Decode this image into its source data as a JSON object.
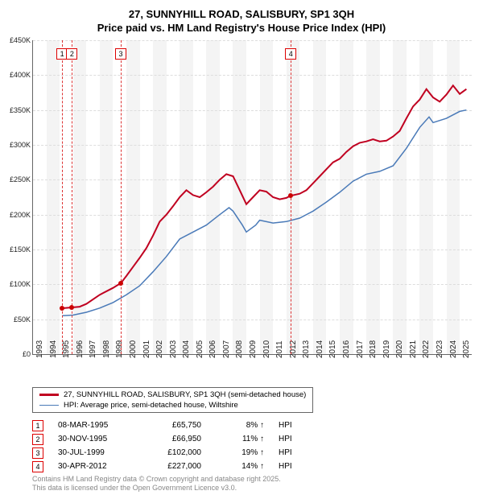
{
  "title_line1": "27, SUNNYHILL ROAD, SALISBURY, SP1 3QH",
  "title_line2": "Price paid vs. HM Land Registry's House Price Index (HPI)",
  "chart": {
    "type": "line",
    "xlim": [
      1993,
      2025.9
    ],
    "ylim": [
      0,
      450000
    ],
    "ytick_step": 50000,
    "ylabels": [
      "£0",
      "£50K",
      "£100K",
      "£150K",
      "£200K",
      "£250K",
      "£300K",
      "£350K",
      "£400K",
      "£450K"
    ],
    "xticks": [
      1993,
      1994,
      1995,
      1996,
      1997,
      1998,
      1999,
      2000,
      2001,
      2002,
      2003,
      2004,
      2005,
      2006,
      2007,
      2008,
      2009,
      2010,
      2011,
      2012,
      2013,
      2014,
      2015,
      2016,
      2017,
      2018,
      2019,
      2020,
      2021,
      2022,
      2023,
      2024,
      2025
    ],
    "band_color": "#f4f4f4",
    "grid_color": "#ddd",
    "series": [
      {
        "name": "27, SUNNYHILL ROAD, SALISBURY, SP1 3QH (semi-detached house)",
        "color": "#c00020",
        "width": 2,
        "points": [
          [
            1995.2,
            65750
          ],
          [
            1995.9,
            66950
          ],
          [
            1996.5,
            68000
          ],
          [
            1997,
            72000
          ],
          [
            1998,
            85000
          ],
          [
            1999,
            95000
          ],
          [
            1999.6,
            102000
          ],
          [
            2000,
            112000
          ],
          [
            2000.5,
            125000
          ],
          [
            2001,
            138000
          ],
          [
            2001.5,
            152000
          ],
          [
            2002,
            170000
          ],
          [
            2002.5,
            190000
          ],
          [
            2003,
            200000
          ],
          [
            2003.5,
            212000
          ],
          [
            2004,
            225000
          ],
          [
            2004.5,
            235000
          ],
          [
            2005,
            228000
          ],
          [
            2005.5,
            225000
          ],
          [
            2006,
            232000
          ],
          [
            2006.5,
            240000
          ],
          [
            2007,
            250000
          ],
          [
            2007.5,
            258000
          ],
          [
            2008,
            255000
          ],
          [
            2008.5,
            235000
          ],
          [
            2009,
            215000
          ],
          [
            2009.5,
            225000
          ],
          [
            2010,
            235000
          ],
          [
            2010.5,
            233000
          ],
          [
            2011,
            225000
          ],
          [
            2011.5,
            222000
          ],
          [
            2012,
            224000
          ],
          [
            2012.3,
            227000
          ],
          [
            2013,
            230000
          ],
          [
            2013.5,
            235000
          ],
          [
            2014,
            245000
          ],
          [
            2014.5,
            255000
          ],
          [
            2015,
            265000
          ],
          [
            2015.5,
            275000
          ],
          [
            2016,
            280000
          ],
          [
            2016.5,
            290000
          ],
          [
            2017,
            298000
          ],
          [
            2017.5,
            303000
          ],
          [
            2018,
            305000
          ],
          [
            2018.5,
            308000
          ],
          [
            2019,
            305000
          ],
          [
            2019.5,
            306000
          ],
          [
            2020,
            312000
          ],
          [
            2020.5,
            320000
          ],
          [
            2021,
            338000
          ],
          [
            2021.5,
            355000
          ],
          [
            2022,
            365000
          ],
          [
            2022.5,
            380000
          ],
          [
            2023,
            368000
          ],
          [
            2023.5,
            362000
          ],
          [
            2024,
            372000
          ],
          [
            2024.5,
            385000
          ],
          [
            2025,
            373000
          ],
          [
            2025.5,
            380000
          ]
        ]
      },
      {
        "name": "HPI: Average price, semi-detached house, Wiltshire",
        "color": "#4a7ab8",
        "width": 1.5,
        "points": [
          [
            1995.2,
            55000
          ],
          [
            1996,
            56000
          ],
          [
            1997,
            60000
          ],
          [
            1998,
            66000
          ],
          [
            1999,
            74000
          ],
          [
            2000,
            85000
          ],
          [
            2001,
            98000
          ],
          [
            2002,
            118000
          ],
          [
            2003,
            140000
          ],
          [
            2004,
            165000
          ],
          [
            2005,
            175000
          ],
          [
            2006,
            185000
          ],
          [
            2007,
            200000
          ],
          [
            2007.7,
            210000
          ],
          [
            2008,
            205000
          ],
          [
            2008.7,
            185000
          ],
          [
            2009,
            175000
          ],
          [
            2009.7,
            185000
          ],
          [
            2010,
            192000
          ],
          [
            2011,
            188000
          ],
          [
            2012,
            190000
          ],
          [
            2013,
            195000
          ],
          [
            2014,
            205000
          ],
          [
            2015,
            218000
          ],
          [
            2016,
            232000
          ],
          [
            2017,
            248000
          ],
          [
            2018,
            258000
          ],
          [
            2019,
            262000
          ],
          [
            2020,
            270000
          ],
          [
            2021,
            295000
          ],
          [
            2022,
            325000
          ],
          [
            2022.7,
            340000
          ],
          [
            2023,
            332000
          ],
          [
            2024,
            338000
          ],
          [
            2025,
            348000
          ],
          [
            2025.5,
            350000
          ]
        ]
      }
    ],
    "sale_points": [
      {
        "x": 1995.18,
        "y": 65750
      },
      {
        "x": 1995.92,
        "y": 66950
      },
      {
        "x": 1999.58,
        "y": 102000
      },
      {
        "x": 2012.33,
        "y": 227000
      }
    ],
    "markers": [
      {
        "n": "1",
        "x": 1995.18
      },
      {
        "n": "2",
        "x": 1995.92
      },
      {
        "n": "3",
        "x": 1999.58
      },
      {
        "n": "4",
        "x": 2012.33
      }
    ]
  },
  "legend": [
    {
      "label": "27, SUNNYHILL ROAD, SALISBURY, SP1 3QH (semi-detached house)",
      "color": "#c00020",
      "w": 3
    },
    {
      "label": "HPI: Average price, semi-detached house, Wiltshire",
      "color": "#4a7ab8",
      "w": 1.5
    }
  ],
  "table": [
    {
      "n": "1",
      "date": "08-MAR-1995",
      "price": "£65,750",
      "pct": "8% ↑",
      "suffix": "HPI"
    },
    {
      "n": "2",
      "date": "30-NOV-1995",
      "price": "£66,950",
      "pct": "11% ↑",
      "suffix": "HPI"
    },
    {
      "n": "3",
      "date": "30-JUL-1999",
      "price": "£102,000",
      "pct": "19% ↑",
      "suffix": "HPI"
    },
    {
      "n": "4",
      "date": "30-APR-2012",
      "price": "£227,000",
      "pct": "14% ↑",
      "suffix": "HPI"
    }
  ],
  "footer_line1": "Contains HM Land Registry data © Crown copyright and database right 2025.",
  "footer_line2": "This data is licensed under the Open Government Licence v3.0."
}
